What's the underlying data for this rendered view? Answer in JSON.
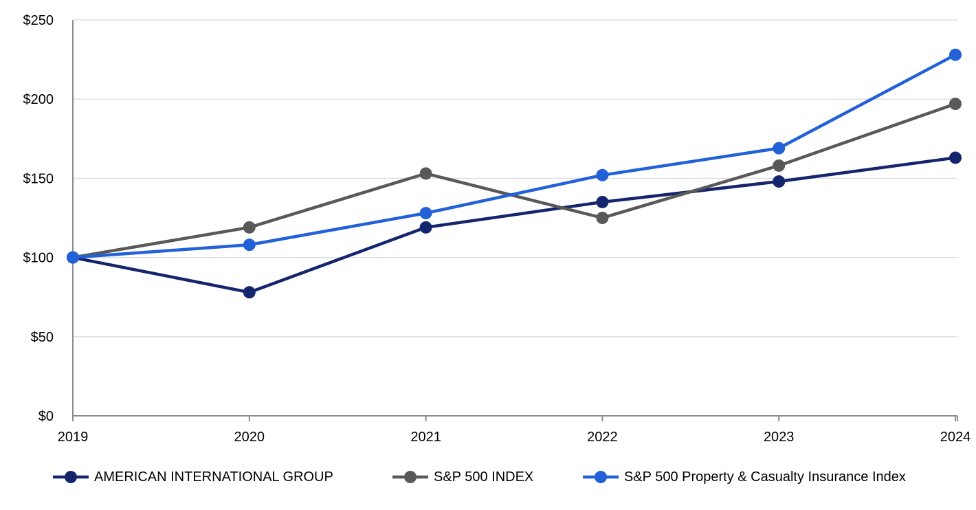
{
  "chart_data": {
    "type": "line",
    "title": "",
    "xlabel": "",
    "ylabel": "",
    "x": [
      "2019",
      "2020",
      "2021",
      "2022",
      "2023",
      "2024"
    ],
    "series": [
      {
        "name": "AMERICAN INTERNATIONAL GROUP",
        "color": "#15256d",
        "values": [
          100,
          78,
          119,
          135,
          148,
          163
        ]
      },
      {
        "name": "S&P 500 INDEX",
        "color": "#595959",
        "values": [
          100,
          119,
          153,
          125,
          158,
          197
        ]
      },
      {
        "name": "S&P 500 Property & Casualty Insurance Index",
        "color": "#2261d8",
        "values": [
          100,
          108,
          128,
          152,
          169,
          228
        ]
      }
    ],
    "ylim": [
      0,
      250
    ],
    "y_ticks": [
      0,
      50,
      100,
      150,
      200,
      250
    ],
    "y_tick_labels": [
      "$0",
      "$50",
      "$100",
      "$150",
      "$200",
      "$250"
    ],
    "grid": true,
    "legend_position": "bottom"
  },
  "style": {
    "axis_color": "#8c8c8c",
    "grid_color": "#dcdcdc",
    "text_color": "#000000",
    "background": "#ffffff",
    "line_width": 4.5,
    "marker_radius": 9
  }
}
